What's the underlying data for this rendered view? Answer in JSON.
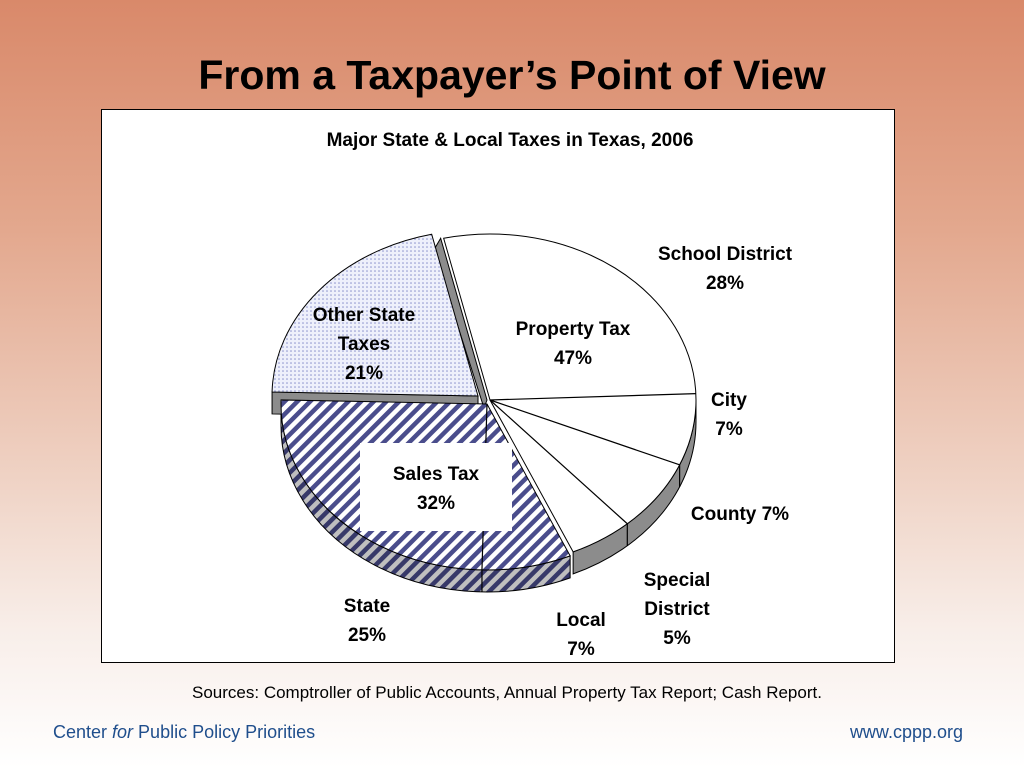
{
  "slide": {
    "title": "From a Taxpayer’s Point of View",
    "sources": "Sources: Comptroller of Public Accounts, Annual Property Tax Report; Cash Report.",
    "footer_left_pre": "Center ",
    "footer_left_em": "for",
    "footer_left_post": " Public Policy Priorities",
    "footer_right": "www.cppp.org"
  },
  "chart_data": {
    "type": "pie",
    "title": "Major State & Local Taxes in Texas, 2006",
    "slices": [
      {
        "name": "Property Tax",
        "value": 47,
        "value_label": "47%",
        "sub": [
          {
            "name": "School District",
            "value": 28,
            "value_label": "28%"
          },
          {
            "name": "City",
            "value": 7,
            "value_label": "7%"
          },
          {
            "name": "County",
            "value": 7,
            "value_label": "7%"
          },
          {
            "name": "Special District",
            "value": 5,
            "value_label": "5%"
          }
        ]
      },
      {
        "name": "Sales Tax",
        "value": 32,
        "value_label": "32%",
        "sub": [
          {
            "name": "Local",
            "value": 7,
            "value_label": "7%"
          },
          {
            "name": "State",
            "value": 25,
            "value_label": "25%"
          }
        ]
      },
      {
        "name": "Other State Taxes",
        "value": 21,
        "value_label": "21%",
        "sub": []
      }
    ],
    "colors": {
      "property": "#ffffff",
      "sales_stripe": "#4a4d8c",
      "other_dots": "#8a91cc",
      "depth": "#8c8c8c"
    }
  }
}
